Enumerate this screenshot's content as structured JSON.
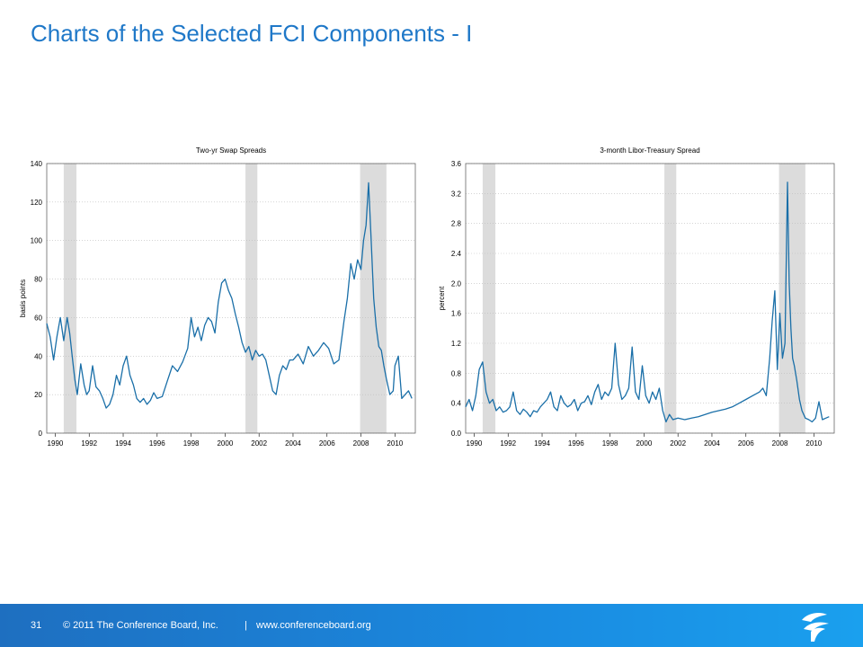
{
  "page": {
    "title": "Charts of the Selected FCI Components - I",
    "page_number": "31",
    "copyright": "© 2011 The Conference Board, Inc.",
    "separator": "|",
    "website": "www.conferenceboard.org",
    "title_color": "#1f78c8",
    "footer_color": "#1a8ae0",
    "line_color": "#1a6fa8",
    "recession_color": "#dcdcdc"
  },
  "chart_data": [
    {
      "type": "line",
      "title": "Two-yr Swap Spreads",
      "ylabel": "basis points",
      "xlabel": "",
      "xlim": [
        1989.5,
        2011.2
      ],
      "ylim": [
        0,
        140
      ],
      "yticks": [
        0,
        20,
        40,
        60,
        80,
        100,
        120,
        140
      ],
      "xticks": [
        1990,
        1992,
        1994,
        1996,
        1998,
        2000,
        2002,
        2004,
        2006,
        2008,
        2010
      ],
      "grid": true,
      "recessions": [
        [
          1990.5,
          1991.25
        ],
        [
          2001.2,
          2001.9
        ],
        [
          2007.95,
          2009.5
        ]
      ],
      "series": [
        {
          "x": [
            1989.5,
            1989.7,
            1989.9,
            1990.1,
            1990.3,
            1990.5,
            1990.7,
            1990.85,
            1991.0,
            1991.15,
            1991.3,
            1991.5,
            1991.7,
            1991.85,
            1992.0,
            1992.2,
            1992.4,
            1992.6,
            1992.8,
            1993.0,
            1993.2,
            1993.4,
            1993.6,
            1993.8,
            1994.0,
            1994.2,
            1994.4,
            1994.6,
            1994.8,
            1995.0,
            1995.2,
            1995.4,
            1995.6,
            1995.8,
            1996.0,
            1996.3,
            1996.6,
            1996.9,
            1997.2,
            1997.5,
            1997.8,
            1998.0,
            1998.2,
            1998.4,
            1998.6,
            1998.8,
            1999.0,
            1999.2,
            1999.4,
            1999.6,
            1999.8,
            2000.0,
            2000.2,
            2000.4,
            2000.6,
            2000.8,
            2001.0,
            2001.2,
            2001.4,
            2001.6,
            2001.8,
            2002.0,
            2002.2,
            2002.4,
            2002.6,
            2002.8,
            2003.0,
            2003.2,
            2003.4,
            2003.6,
            2003.8,
            2004.0,
            2004.3,
            2004.6,
            2004.9,
            2005.2,
            2005.5,
            2005.8,
            2006.1,
            2006.4,
            2006.7,
            2007.0,
            2007.2,
            2007.4,
            2007.6,
            2007.8,
            2008.0,
            2008.15,
            2008.3,
            2008.45,
            2008.6,
            2008.75,
            2008.9,
            2009.05,
            2009.2,
            2009.35,
            2009.5,
            2009.7,
            2009.9,
            2010.0,
            2010.2,
            2010.4,
            2010.6,
            2010.8,
            2011.0
          ],
          "values": [
            57,
            50,
            38,
            50,
            60,
            48,
            60,
            52,
            40,
            28,
            20,
            36,
            25,
            20,
            22,
            35,
            24,
            22,
            18,
            13,
            15,
            20,
            30,
            25,
            35,
            40,
            30,
            25,
            18,
            16,
            18,
            15,
            17,
            21,
            18,
            19,
            27,
            35,
            32,
            37,
            44,
            60,
            50,
            55,
            48,
            56,
            60,
            58,
            52,
            68,
            78,
            80,
            74,
            70,
            62,
            55,
            47,
            42,
            45,
            38,
            43,
            40,
            41,
            38,
            30,
            22,
            20,
            30,
            35,
            33,
            38,
            38,
            41,
            36,
            45,
            40,
            43,
            47,
            44,
            36,
            38,
            58,
            70,
            88,
            80,
            90,
            85,
            100,
            108,
            130,
            100,
            70,
            55,
            45,
            43,
            35,
            28,
            20,
            22,
            35,
            40,
            18,
            20,
            22,
            18
          ]
        }
      ]
    },
    {
      "type": "line",
      "title": "3-month Libor-Treasury Spread",
      "ylabel": "percent",
      "xlabel": "",
      "xlim": [
        1989.5,
        2011.2
      ],
      "ylim": [
        0,
        3.6
      ],
      "yticks": [
        "0.0",
        "0.4",
        "0.8",
        "1.2",
        "1.6",
        "2.0",
        "2.4",
        "2.8",
        "3.2",
        "3.6"
      ],
      "xticks": [
        1990,
        1992,
        1994,
        1996,
        1998,
        2000,
        2002,
        2004,
        2006,
        2008,
        2010
      ],
      "grid": true,
      "recessions": [
        [
          1990.5,
          1991.25
        ],
        [
          2001.2,
          2001.9
        ],
        [
          2007.95,
          2009.5
        ]
      ],
      "series": [
        {
          "x": [
            1989.5,
            1989.7,
            1989.9,
            1990.1,
            1990.3,
            1990.5,
            1990.7,
            1990.9,
            1991.1,
            1991.3,
            1991.5,
            1991.7,
            1991.9,
            1992.1,
            1992.3,
            1992.5,
            1992.7,
            1992.9,
            1993.1,
            1993.3,
            1993.5,
            1993.7,
            1993.9,
            1994.1,
            1994.3,
            1994.5,
            1994.7,
            1994.9,
            1995.1,
            1995.3,
            1995.5,
            1995.7,
            1995.9,
            1996.1,
            1996.3,
            1996.5,
            1996.7,
            1996.9,
            1997.1,
            1997.3,
            1997.5,
            1997.7,
            1997.9,
            1998.1,
            1998.3,
            1998.5,
            1998.7,
            1998.9,
            1999.1,
            1999.3,
            1999.5,
            1999.7,
            1999.9,
            2000.1,
            2000.3,
            2000.5,
            2000.7,
            2000.9,
            2001.1,
            2001.3,
            2001.5,
            2001.7,
            2002.0,
            2002.4,
            2002.8,
            2003.2,
            2003.6,
            2004.0,
            2004.4,
            2004.8,
            2005.2,
            2005.6,
            2006.0,
            2006.4,
            2006.8,
            2007.0,
            2007.2,
            2007.4,
            2007.55,
            2007.7,
            2007.85,
            2008.0,
            2008.15,
            2008.3,
            2008.45,
            2008.55,
            2008.65,
            2008.75,
            2008.85,
            2009.0,
            2009.15,
            2009.3,
            2009.5,
            2009.7,
            2009.9,
            2010.1,
            2010.3,
            2010.5,
            2010.7,
            2010.9
          ],
          "values": [
            0.35,
            0.45,
            0.3,
            0.5,
            0.85,
            0.95,
            0.55,
            0.4,
            0.45,
            0.3,
            0.35,
            0.28,
            0.3,
            0.35,
            0.55,
            0.3,
            0.25,
            0.32,
            0.28,
            0.22,
            0.3,
            0.28,
            0.35,
            0.4,
            0.45,
            0.55,
            0.35,
            0.3,
            0.5,
            0.4,
            0.35,
            0.38,
            0.45,
            0.3,
            0.4,
            0.42,
            0.5,
            0.38,
            0.55,
            0.65,
            0.45,
            0.55,
            0.5,
            0.6,
            1.2,
            0.65,
            0.45,
            0.5,
            0.6,
            1.15,
            0.55,
            0.45,
            0.9,
            0.5,
            0.4,
            0.55,
            0.45,
            0.6,
            0.3,
            0.15,
            0.25,
            0.18,
            0.2,
            0.18,
            0.2,
            0.22,
            0.25,
            0.28,
            0.3,
            0.32,
            0.35,
            0.4,
            0.45,
            0.5,
            0.55,
            0.6,
            0.5,
            1.0,
            1.5,
            1.9,
            0.85,
            1.6,
            1.0,
            1.2,
            3.35,
            2.0,
            1.4,
            1.0,
            0.9,
            0.7,
            0.45,
            0.3,
            0.2,
            0.18,
            0.15,
            0.2,
            0.42,
            0.18,
            0.2,
            0.22
          ]
        }
      ]
    }
  ]
}
